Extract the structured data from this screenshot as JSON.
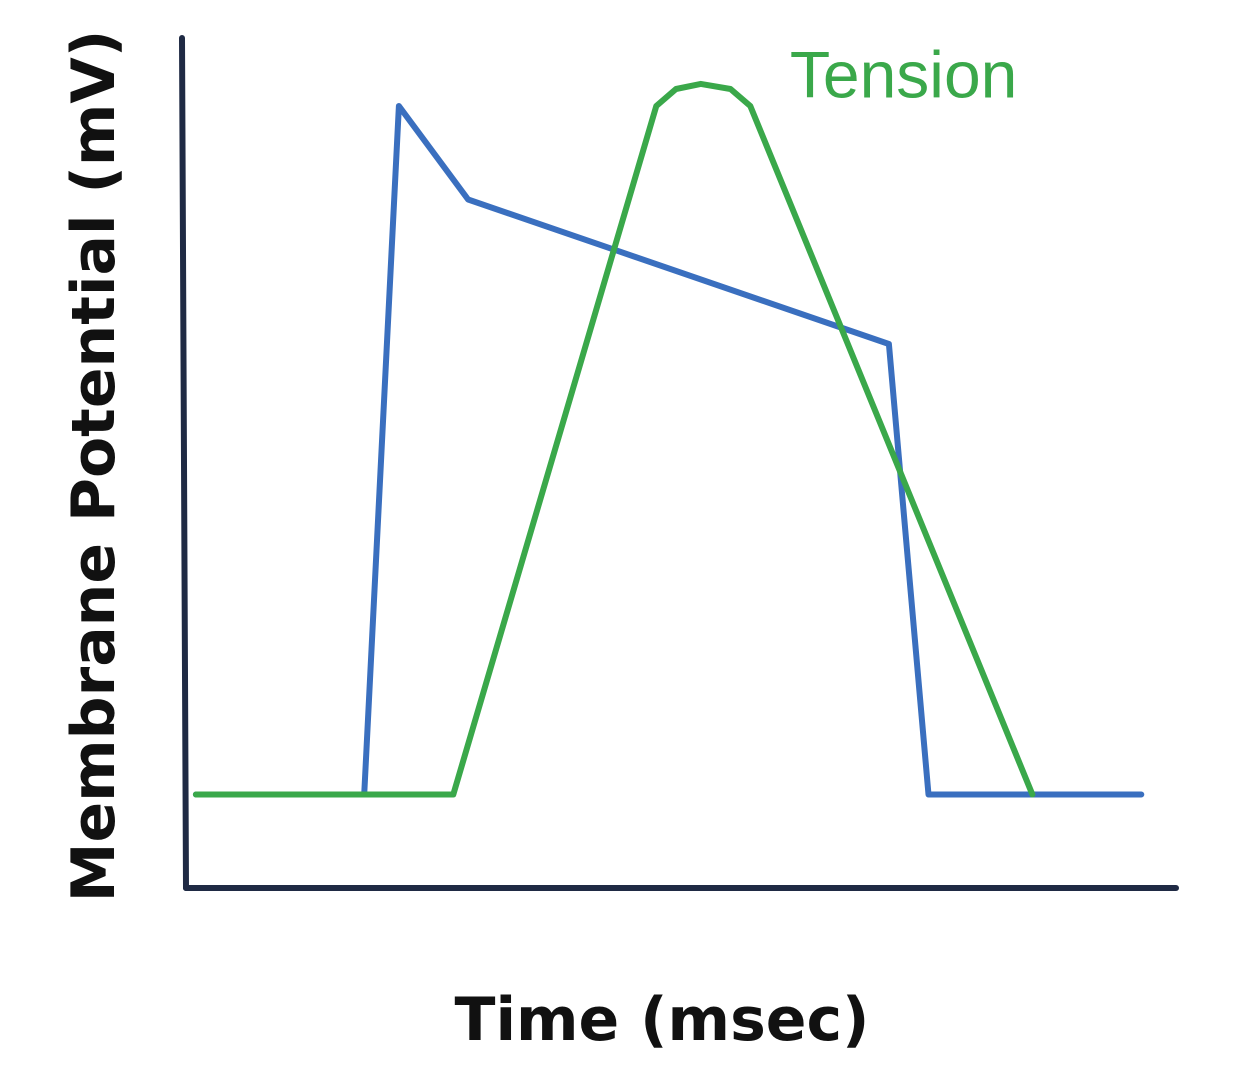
{
  "chart_data": {
    "type": "line",
    "title": "",
    "xlabel": "Time (msec)",
    "ylabel": "Membrane Potential (mV)",
    "xlim": [
      0,
      100
    ],
    "ylim": [
      0,
      100
    ],
    "grid": false,
    "axis_ticks": false,
    "series": [
      {
        "key": "membrane-potential",
        "color": "#3a6fbf",
        "points": [
          [
            1,
            11
          ],
          [
            18,
            11
          ],
          [
            21.5,
            92
          ],
          [
            28.5,
            81
          ],
          [
            71,
            64
          ],
          [
            75,
            11
          ],
          [
            96.5,
            11
          ]
        ]
      },
      {
        "name": "Tension",
        "color": "#3aa84a",
        "points": [
          [
            1,
            11
          ],
          [
            27,
            11
          ],
          [
            47.5,
            92
          ],
          [
            49.5,
            94
          ],
          [
            52,
            94.6
          ],
          [
            55,
            94
          ],
          [
            57,
            92
          ],
          [
            85.5,
            11
          ]
        ]
      }
    ],
    "annotations": [
      {
        "text": "Tension",
        "series": "Tension",
        "x": 61,
        "y": 93
      }
    ]
  }
}
